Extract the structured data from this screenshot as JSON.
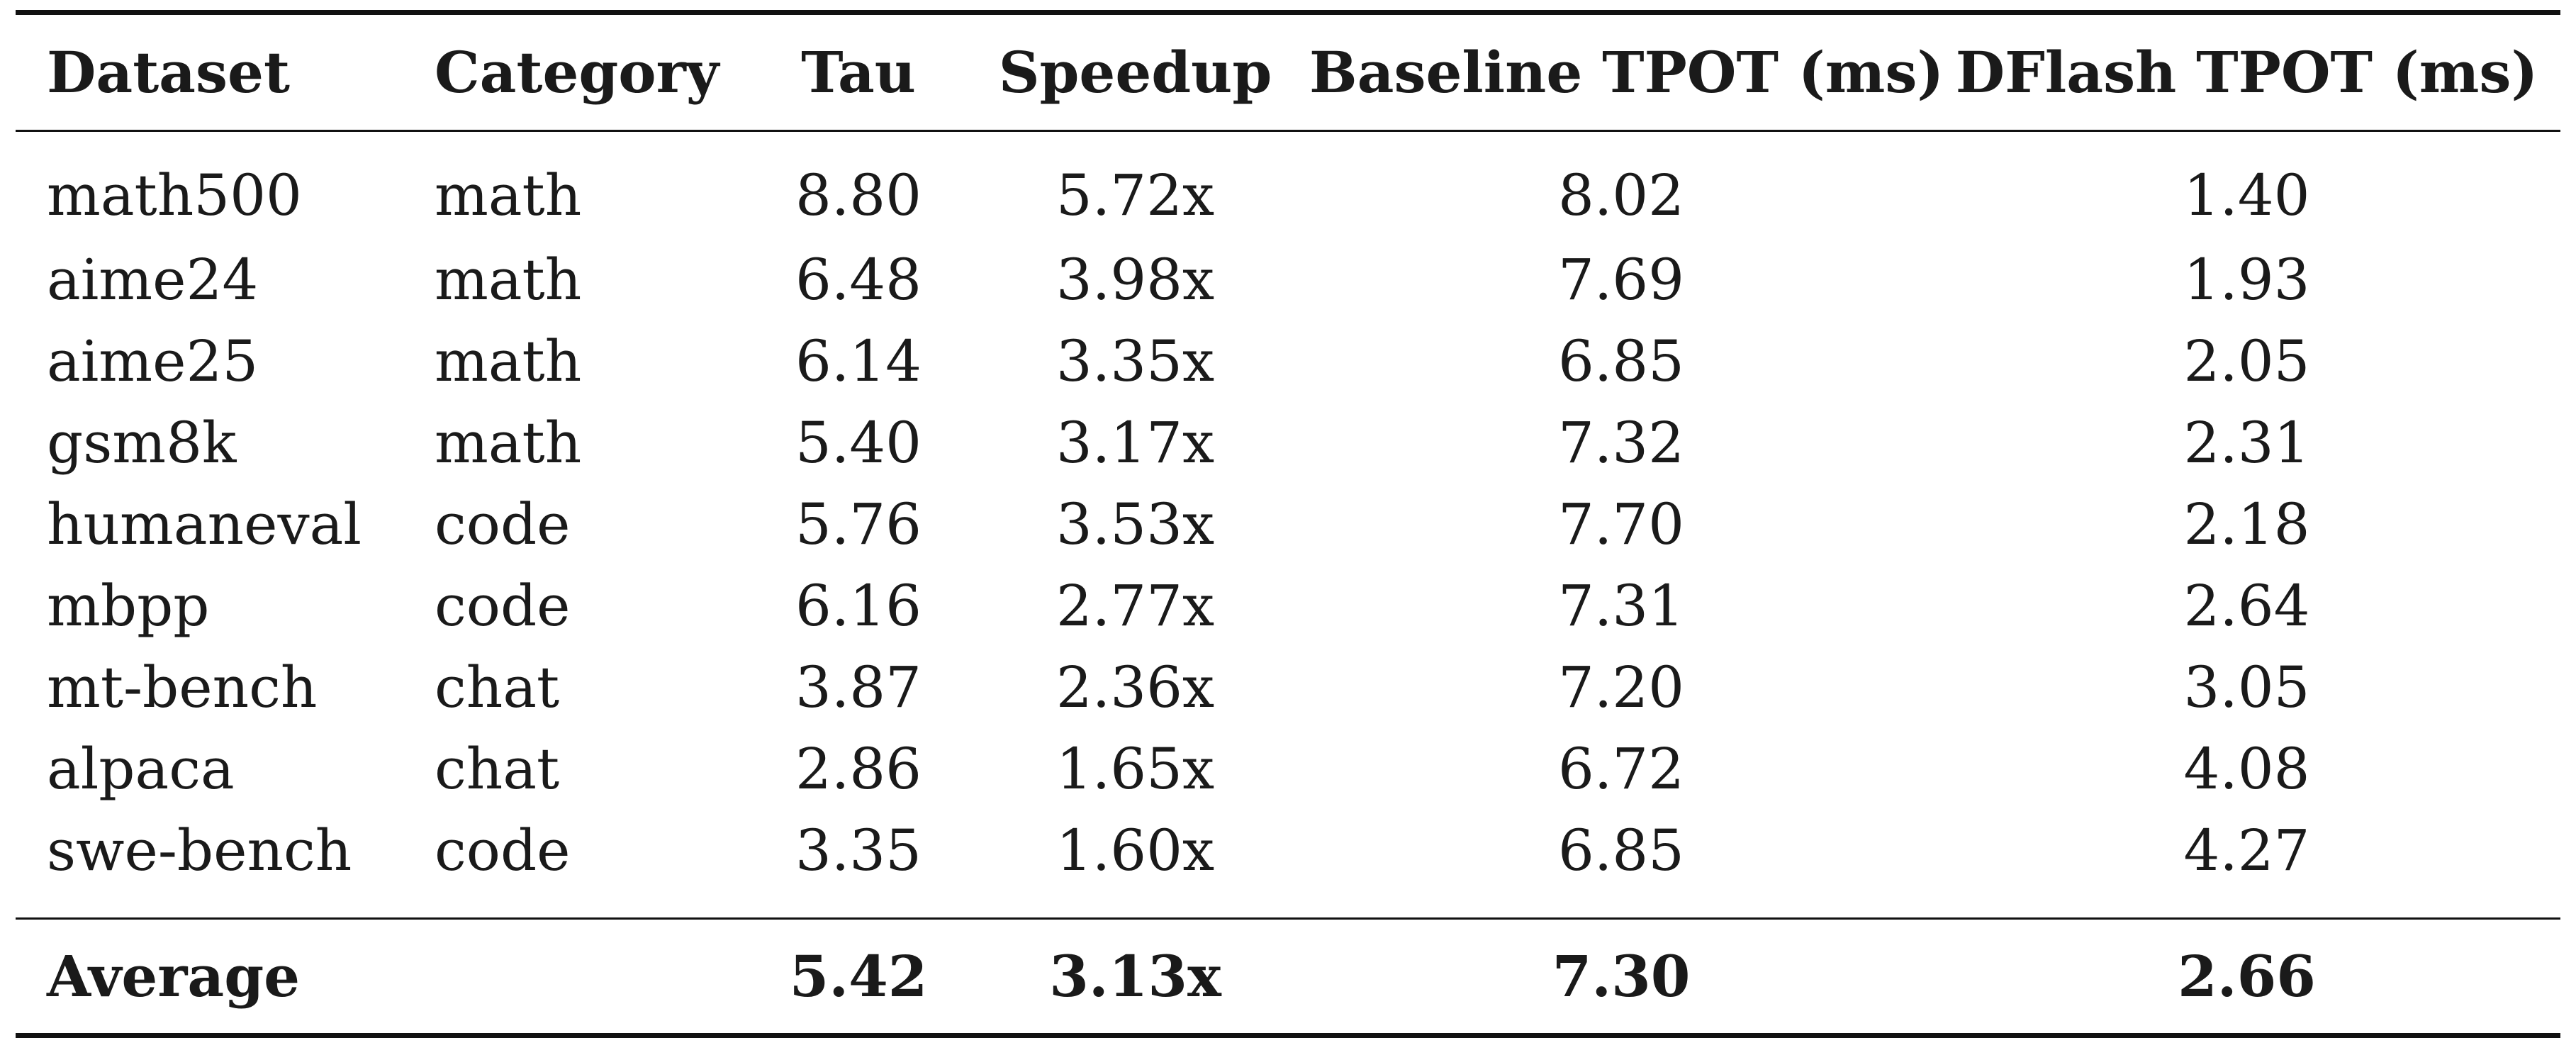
{
  "chart_data": {
    "type": "table",
    "columns": [
      "Dataset",
      "Category",
      "Tau",
      "Speedup",
      "Baseline TPOT (ms)",
      "DFlash TPOT (ms)"
    ],
    "rows": [
      [
        "math500",
        "math",
        "8.80",
        "5.72x",
        "8.02",
        "1.40"
      ],
      [
        "aime24",
        "math",
        "6.48",
        "3.98x",
        "7.69",
        "1.93"
      ],
      [
        "aime25",
        "math",
        "6.14",
        "3.35x",
        "6.85",
        "2.05"
      ],
      [
        "gsm8k",
        "math",
        "5.40",
        "3.17x",
        "7.32",
        "2.31"
      ],
      [
        "humaneval",
        "code",
        "5.76",
        "3.53x",
        "7.70",
        "2.18"
      ],
      [
        "mbpp",
        "code",
        "6.16",
        "2.77x",
        "7.31",
        "2.64"
      ],
      [
        "mt-bench",
        "chat",
        "3.87",
        "2.36x",
        "7.20",
        "3.05"
      ],
      [
        "alpaca",
        "chat",
        "2.86",
        "1.65x",
        "6.72",
        "4.08"
      ],
      [
        "swe-bench",
        "code",
        "3.35",
        "1.60x",
        "6.85",
        "4.27"
      ]
    ],
    "average": [
      "Average",
      "",
      "5.42",
      "3.13x",
      "7.30",
      "2.66"
    ]
  }
}
